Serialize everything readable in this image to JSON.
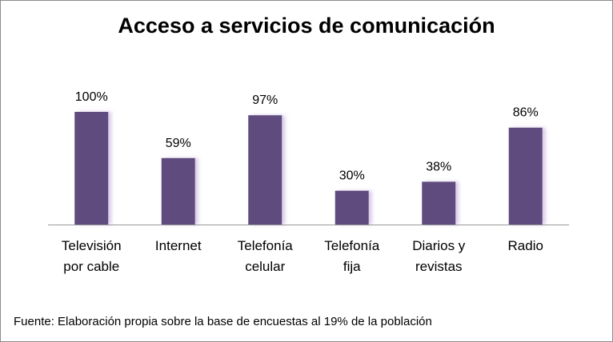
{
  "source_note": "Fuente:  Elaboración propia sobre la base de encuestas al 19%  de la población",
  "chart_data": {
    "type": "bar",
    "title": "Acceso a servicios de comunicación",
    "categories": [
      [
        "Televisión",
        "por cable"
      ],
      [
        "Internet"
      ],
      [
        "Telefonía",
        "celular"
      ],
      [
        "Telefonía",
        "fija"
      ],
      [
        "Diarios y",
        "revistas"
      ],
      [
        "Radio"
      ]
    ],
    "values": [
      100,
      59,
      97,
      30,
      38,
      86
    ],
    "data_labels": [
      "100%",
      "59%",
      "97%",
      "30%",
      "38%",
      "86%"
    ],
    "ylim": [
      0,
      100
    ],
    "xlabel": "",
    "ylabel": "",
    "grid": false,
    "legend": "none",
    "bar_color": "#5f4b7e"
  }
}
